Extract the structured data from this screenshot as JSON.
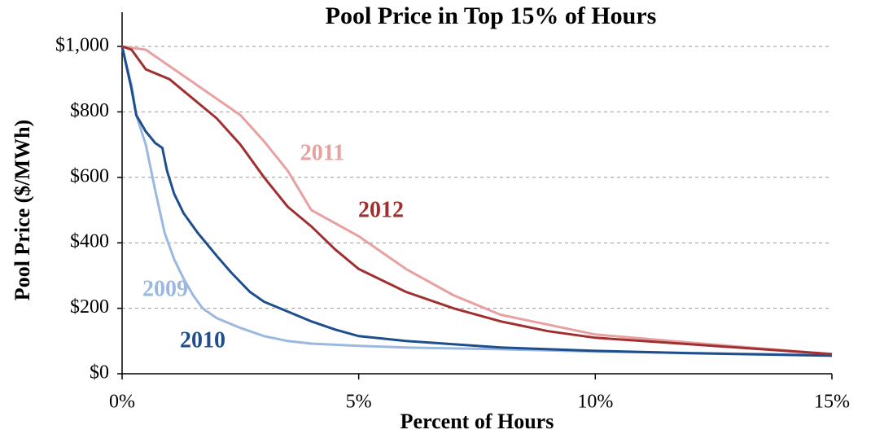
{
  "chart_data": {
    "type": "line",
    "title": "Pool Price in Top 15% of Hours",
    "x_label": "Percent of Hours",
    "y_label": "Pool Price ($/MWh)",
    "xlim": [
      0,
      15
    ],
    "ylim": [
      0,
      1000
    ],
    "xticks": [
      {
        "value": 0,
        "label": "0%"
      },
      {
        "value": 5,
        "label": "5%"
      },
      {
        "value": 10,
        "label": "10%"
      },
      {
        "value": 15,
        "label": "15%"
      }
    ],
    "yticks": [
      {
        "value": 0,
        "label": "$0"
      },
      {
        "value": 200,
        "label": "$200"
      },
      {
        "value": 400,
        "label": "$400"
      },
      {
        "value": 600,
        "label": "$600"
      },
      {
        "value": 800,
        "label": "$800"
      },
      {
        "value": 1000,
        "label": "$1,000"
      }
    ],
    "grid": true,
    "series": [
      {
        "name": "2009",
        "color": "#9ab8e0",
        "x": [
          0,
          0.2,
          0.3,
          0.5,
          0.7,
          0.9,
          1.1,
          1.3,
          1.5,
          1.7,
          2,
          2.5,
          3,
          3.5,
          4,
          5,
          6,
          8,
          10,
          15
        ],
        "values": [
          1000,
          880,
          790,
          700,
          560,
          430,
          350,
          290,
          240,
          200,
          170,
          140,
          115,
          100,
          92,
          85,
          80,
          75,
          68,
          57
        ]
      },
      {
        "name": "2010",
        "color": "#1f4e8c",
        "x": [
          0,
          0.2,
          0.3,
          0.5,
          0.7,
          0.85,
          0.95,
          1.1,
          1.3,
          1.6,
          2,
          2.3,
          2.7,
          3,
          3.5,
          4,
          4.5,
          5,
          6,
          7,
          8,
          10,
          12,
          15
        ],
        "values": [
          1000,
          870,
          790,
          740,
          705,
          690,
          620,
          550,
          490,
          430,
          360,
          310,
          250,
          220,
          190,
          160,
          135,
          115,
          100,
          90,
          80,
          70,
          63,
          55
        ]
      },
      {
        "name": "2011",
        "color": "#e8a0a0",
        "x": [
          0,
          0.5,
          1,
          1.5,
          2,
          2.5,
          3,
          3.5,
          4,
          4.5,
          5,
          6,
          7,
          8,
          9,
          10,
          12,
          15
        ],
        "values": [
          1000,
          990,
          940,
          890,
          840,
          790,
          710,
          620,
          500,
          460,
          420,
          320,
          240,
          180,
          150,
          120,
          95,
          60
        ]
      },
      {
        "name": "2012",
        "color": "#a03030",
        "x": [
          0,
          0.2,
          0.5,
          1,
          1.5,
          2,
          2.5,
          3,
          3.5,
          4,
          4.5,
          5,
          6,
          7,
          8,
          9,
          10,
          12,
          15
        ],
        "values": [
          1000,
          990,
          930,
          900,
          840,
          780,
          700,
          600,
          510,
          450,
          380,
          320,
          250,
          200,
          160,
          130,
          110,
          90,
          60
        ]
      }
    ]
  }
}
